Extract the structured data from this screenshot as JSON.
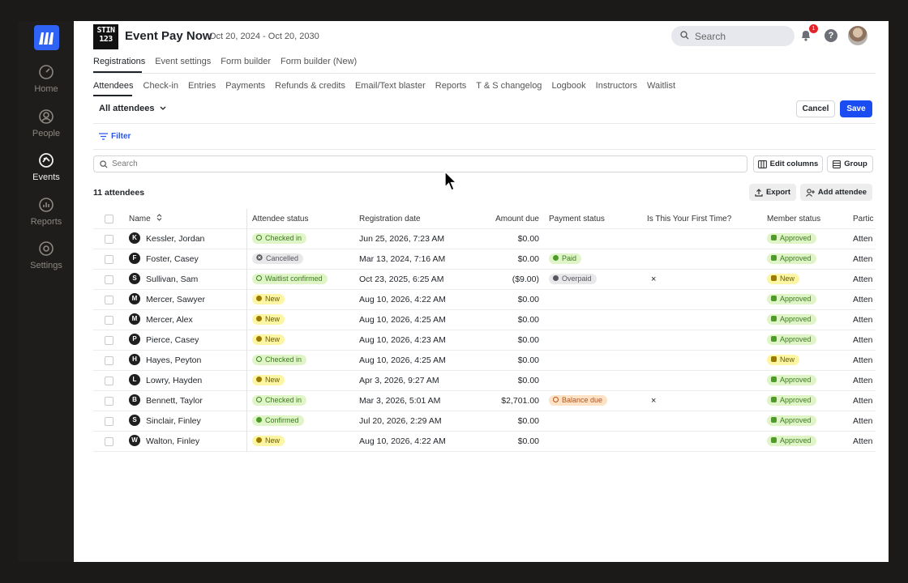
{
  "sidebar": {
    "items": [
      {
        "label": "Home",
        "icon": "speedometer-icon"
      },
      {
        "label": "People",
        "icon": "person-icon"
      },
      {
        "label": "Events",
        "icon": "events-icon"
      },
      {
        "label": "Reports",
        "icon": "chart-icon"
      },
      {
        "label": "Settings",
        "icon": "gear-icon"
      }
    ],
    "active": "Events"
  },
  "header": {
    "logo_text": "STIN 123",
    "title": "Event Pay Now",
    "dates": "Oct 20, 2024 - Oct 20, 2030",
    "search_placeholder": "Search",
    "notification_count": "1",
    "help_label": "?"
  },
  "tabs_primary": [
    "Registrations",
    "Event settings",
    "Form builder",
    "Form builder (New)"
  ],
  "tabs_secondary": [
    "Attendees",
    "Check-in",
    "Entries",
    "Payments",
    "Refunds & credits",
    "Email/Text blaster",
    "Reports",
    "T & S changelog",
    "Logbook",
    "Instructors",
    "Waitlist"
  ],
  "toolbar": {
    "view_selector": "All attendees",
    "cancel_label": "Cancel",
    "save_label": "Save",
    "filter_label": "Filter",
    "search_placeholder": "Search",
    "edit_columns_label": "Edit columns",
    "group_label": "Group",
    "count_label": "11 attendees",
    "export_label": "Export",
    "add_attendee_label": "Add attendee"
  },
  "table": {
    "columns": [
      "Name",
      "Attendee status",
      "Registration date",
      "Amount due",
      "Payment status",
      "Is This Your First Time?",
      "Member status",
      "Partic"
    ],
    "rows": [
      {
        "initial": "K",
        "name": "Kessler, Jordan",
        "status": "Checked in",
        "status_style": "green-ring",
        "date": "Jun 25, 2026, 7:23 AM",
        "amount": "$0.00",
        "payment": "",
        "payment_style": "",
        "first": "",
        "member": "Approved",
        "member_style": "green",
        "partic": "Atten"
      },
      {
        "initial": "F",
        "name": "Foster, Casey",
        "status": "Cancelled",
        "status_style": "gray-x",
        "date": "Mar 13, 2024, 7:16 AM",
        "amount": "$0.00",
        "payment": "Paid",
        "payment_style": "green",
        "first": "",
        "member": "Approved",
        "member_style": "green",
        "partic": "Atten"
      },
      {
        "initial": "S",
        "name": "Sullivan, Sam",
        "status": "Waitlist confirmed",
        "status_style": "green-ring",
        "date": "Oct 23, 2025, 6:25 AM",
        "amount": "($9.00)",
        "payment": "Overpaid",
        "payment_style": "gray",
        "first": "×",
        "member": "New",
        "member_style": "yellow",
        "partic": "Atten"
      },
      {
        "initial": "M",
        "name": "Mercer, Sawyer",
        "status": "New",
        "status_style": "yellow",
        "date": "Aug 10, 2026, 4:22 AM",
        "amount": "$0.00",
        "payment": "",
        "payment_style": "",
        "first": "",
        "member": "Approved",
        "member_style": "green",
        "partic": "Atten"
      },
      {
        "initial": "M",
        "name": "Mercer, Alex",
        "status": "New",
        "status_style": "yellow",
        "date": "Aug 10, 2026, 4:25 AM",
        "amount": "$0.00",
        "payment": "",
        "payment_style": "",
        "first": "",
        "member": "Approved",
        "member_style": "green",
        "partic": "Atten"
      },
      {
        "initial": "P",
        "name": "Pierce, Casey",
        "status": "New",
        "status_style": "yellow",
        "date": "Aug 10, 2026, 4:23 AM",
        "amount": "$0.00",
        "payment": "",
        "payment_style": "",
        "first": "",
        "member": "Approved",
        "member_style": "green",
        "partic": "Atten"
      },
      {
        "initial": "H",
        "name": "Hayes, Peyton",
        "status": "Checked in",
        "status_style": "green-ring",
        "date": "Aug 10, 2026, 4:25 AM",
        "amount": "$0.00",
        "payment": "",
        "payment_style": "",
        "first": "",
        "member": "New",
        "member_style": "yellow",
        "partic": "Atten"
      },
      {
        "initial": "L",
        "name": "Lowry, Hayden",
        "status": "New",
        "status_style": "yellow",
        "date": "Apr 3, 2026, 9:27 AM",
        "amount": "$0.00",
        "payment": "",
        "payment_style": "",
        "first": "",
        "member": "Approved",
        "member_style": "green",
        "partic": "Atten"
      },
      {
        "initial": "B",
        "name": "Bennett, Taylor",
        "status": "Checked in",
        "status_style": "green-ring",
        "date": "Mar 3, 2026, 5:01 AM",
        "amount": "$2,701.00",
        "payment": "Balance due",
        "payment_style": "orange",
        "first": "×",
        "member": "Approved",
        "member_style": "green",
        "partic": "Atten"
      },
      {
        "initial": "S",
        "name": "Sinclair, Finley",
        "status": "Confirmed",
        "status_style": "green-dot",
        "date": "Jul 20, 2026, 2:29 AM",
        "amount": "$0.00",
        "payment": "",
        "payment_style": "",
        "first": "",
        "member": "Approved",
        "member_style": "green",
        "partic": "Atten"
      },
      {
        "initial": "W",
        "name": "Walton, Finley",
        "status": "New",
        "status_style": "yellow",
        "date": "Aug 10, 2026, 4:22 AM",
        "amount": "$0.00",
        "payment": "",
        "payment_style": "",
        "first": "",
        "member": "Approved",
        "member_style": "green",
        "partic": "Atten"
      }
    ]
  },
  "colors": {
    "primary": "#1a4cf2",
    "sidebar_bg": "#1f1d1b",
    "green_pill": "#dff5c8",
    "yellow_pill": "#fcf6a4",
    "orange_pill": "#fde2c6"
  }
}
